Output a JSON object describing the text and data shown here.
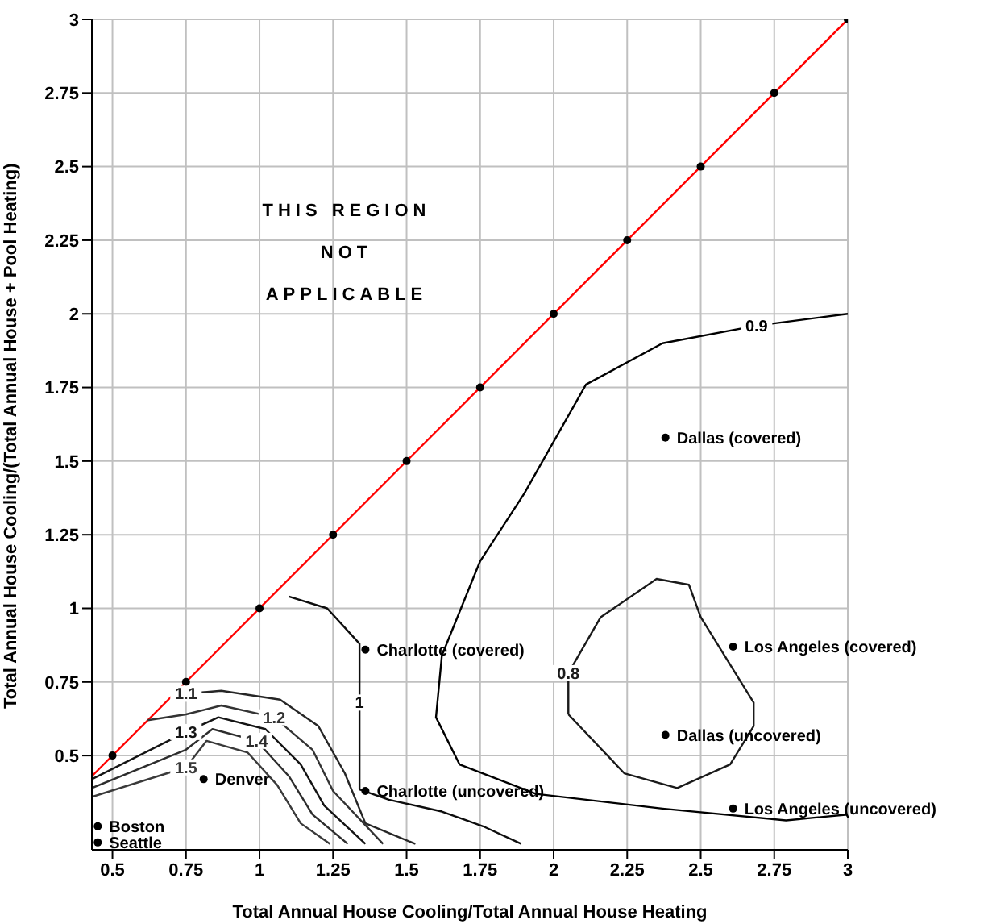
{
  "chart_data": {
    "type": "line",
    "xlabel": "Total Annual House Cooling/Total Annual House Heating",
    "ylabel": "Total Annual House Cooling/(Total Annual House + Pool Heating)",
    "xlim": [
      0.43,
      3
    ],
    "ylim": [
      0.18,
      3
    ],
    "xticks": [
      0.5,
      0.75,
      1,
      1.25,
      1.5,
      1.75,
      2,
      2.25,
      2.5,
      2.75,
      3
    ],
    "yticks": [
      0.5,
      0.75,
      1,
      1.25,
      1.5,
      1.75,
      2,
      2.25,
      2.5,
      2.75,
      3
    ],
    "grid": true,
    "legend": false,
    "line_style": "solid",
    "series": [
      {
        "color": "#ff0000",
        "marker": "none",
        "x": [
          0.43,
          3
        ],
        "values": [
          0.43,
          3
        ]
      },
      {
        "name": "0.8",
        "color": "#1a1a1a",
        "marker": "none",
        "x": [
          2.05,
          2.05,
          2.16,
          2.35,
          2.46,
          2.5,
          2.68,
          2.68
        ],
        "values": [
          0.64,
          0.78,
          0.97,
          1.1,
          1.08,
          0.97,
          0.68,
          0.6
        ]
      },
      {
        "color": "#1a1a1a",
        "marker": "none",
        "x": [
          2.05,
          2.24,
          2.42,
          2.6,
          2.68
        ],
        "values": [
          0.64,
          0.44,
          0.39,
          0.47,
          0.6
        ]
      },
      {
        "name": "0.9",
        "color": "#000000",
        "marker": "none",
        "x": [
          3.0,
          2.69,
          2.37,
          2.11,
          1.9,
          1.75,
          1.62,
          1.6,
          1.68,
          1.94,
          2.37,
          2.79,
          3.0
        ],
        "values": [
          2.0,
          1.96,
          1.9,
          1.76,
          1.39,
          1.16,
          0.84,
          0.63,
          0.47,
          0.37,
          0.32,
          0.28,
          0.3
        ]
      },
      {
        "name": "1",
        "color": "#0d0d0d",
        "marker": "none",
        "x": [
          1.1,
          1.23,
          1.34,
          1.34,
          1.34,
          1.44,
          1.62,
          1.76,
          1.89
        ],
        "values": [
          1.04,
          1.0,
          0.88,
          0.68,
          0.385,
          0.35,
          0.31,
          0.26,
          0.2
        ]
      },
      {
        "name": "1.1",
        "color": "#262626",
        "marker": "none",
        "x": [
          0.7,
          0.75,
          0.87,
          1.07,
          1.2,
          1.29,
          1.36,
          1.53
        ],
        "values": [
          0.7,
          0.71,
          0.72,
          0.69,
          0.6,
          0.44,
          0.27,
          0.2
        ]
      },
      {
        "name": "1.2",
        "color": "#333333",
        "marker": "none",
        "x": [
          0.62,
          0.75,
          0.87,
          1.05,
          1.18,
          1.25,
          1.42
        ],
        "values": [
          0.62,
          0.64,
          0.67,
          0.63,
          0.52,
          0.38,
          0.2
        ]
      },
      {
        "name": "1.3",
        "color": "#141414",
        "marker": "none",
        "x": [
          0.43,
          0.75,
          0.86,
          1.02,
          1.14,
          1.22,
          1.36
        ],
        "values": [
          0.42,
          0.58,
          0.63,
          0.59,
          0.47,
          0.33,
          0.2
        ]
      },
      {
        "name": "1.4",
        "color": "#2d2d2d",
        "marker": "none",
        "x": [
          0.43,
          0.75,
          0.84,
          0.99,
          1.1,
          1.18,
          1.3
        ],
        "values": [
          0.39,
          0.52,
          0.59,
          0.55,
          0.43,
          0.3,
          0.2
        ]
      },
      {
        "name": "1.5",
        "color": "#3a3a3a",
        "marker": "none",
        "x": [
          0.43,
          0.75,
          0.82,
          0.96,
          1.06,
          1.14,
          1.24
        ],
        "values": [
          0.36,
          0.46,
          0.55,
          0.51,
          0.4,
          0.27,
          0.2
        ]
      },
      {
        "type": "scatter",
        "color": "#000000",
        "marker": "circle",
        "x": [
          0.5,
          0.75,
          1,
          1.25,
          1.5,
          1.75,
          2,
          2.25,
          2.5,
          2.75,
          3
        ],
        "values": [
          0.5,
          0.75,
          1,
          1.25,
          1.5,
          1.75,
          2,
          2.25,
          2.5,
          2.75,
          3
        ]
      },
      {
        "type": "scatter",
        "color": "#000000",
        "marker": "circle",
        "x": [
          0.45,
          0.45,
          0.81,
          1.36,
          1.36,
          2.38,
          2.38,
          2.61,
          2.61
        ],
        "values": [
          0.26,
          0.205,
          0.42,
          0.86,
          0.38,
          1.58,
          0.57,
          0.87,
          0.32
        ]
      }
    ],
    "annotations": [
      "THIS REGION NOT APPLICABLE",
      {
        "text": "Boston",
        "x": 0.45,
        "y": 0.26
      },
      {
        "text": "Seattle",
        "x": 0.45,
        "y": 0.205
      },
      {
        "text": "Denver",
        "x": 0.81,
        "y": 0.42
      },
      {
        "text": "Charlotte (covered)",
        "x": 1.36,
        "y": 0.86
      },
      {
        "text": "Charlotte (uncovered)",
        "x": 1.36,
        "y": 0.38
      },
      {
        "text": "Dallas (covered)",
        "x": 2.38,
        "y": 1.58
      },
      {
        "text": "Dallas (uncovered)",
        "x": 2.38,
        "y": 0.57
      },
      {
        "text": "Los Angeles (covered)",
        "x": 2.61,
        "y": 0.87
      },
      {
        "text": "Los Angeles (uncovered)",
        "x": 2.61,
        "y": 0.32
      }
    ]
  }
}
